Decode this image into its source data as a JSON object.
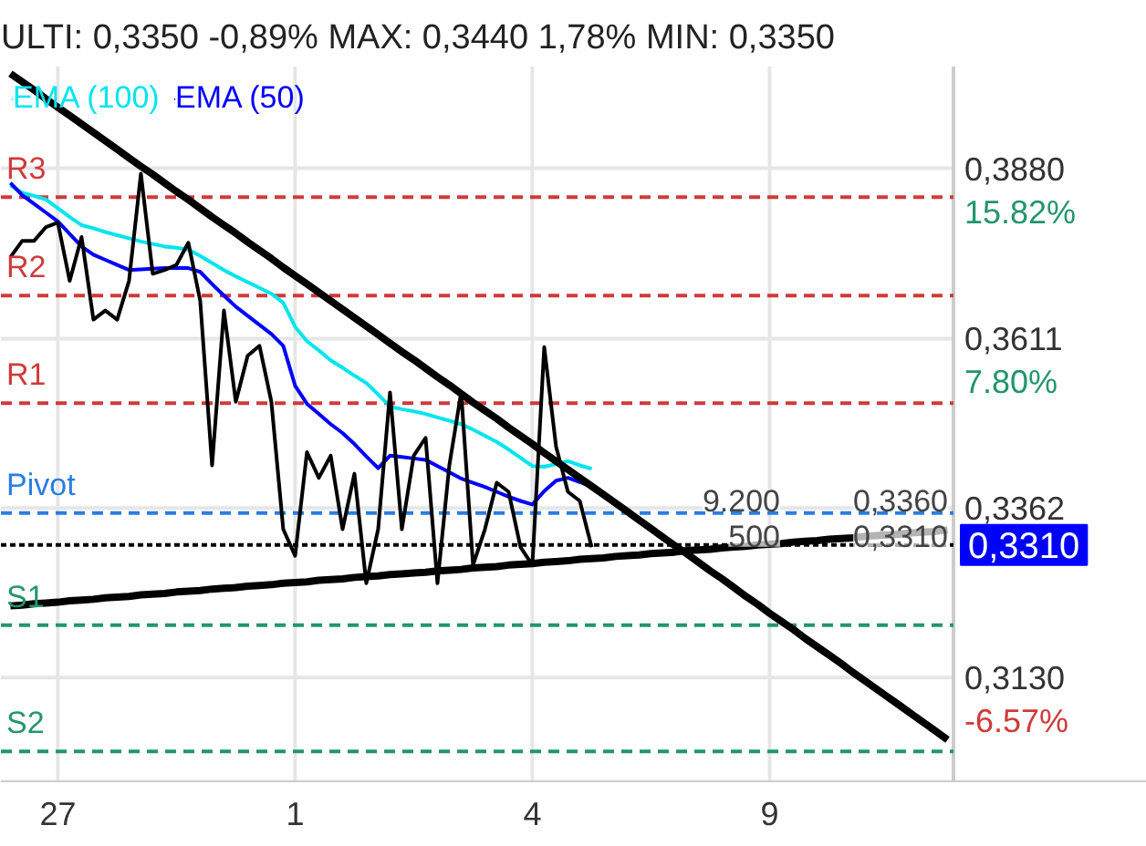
{
  "chart_data": {
    "type": "line",
    "title": "ULTI: 0,3350 -0,89%  MAX: 0,3440 1,78%  MIN: 0,3350",
    "log": "y",
    "grid": true,
    "legend": "top left",
    "categories": [
      null,
      null,
      null,
      null,
      "27",
      null,
      null,
      null,
      null,
      null,
      null,
      null,
      null,
      null,
      null,
      null,
      null,
      null,
      null,
      null,
      null,
      null,
      null,
      null,
      "1",
      null,
      null,
      null,
      null,
      null,
      null,
      null,
      null,
      null,
      null,
      null,
      null,
      null,
      null,
      null,
      null,
      null,
      null,
      null,
      "4",
      null,
      null,
      null,
      null,
      null,
      null,
      null,
      null,
      null,
      null,
      null,
      null,
      null,
      null,
      null,
      null,
      null,
      null,
      null,
      "9",
      null,
      null,
      null,
      null,
      null,
      null,
      null,
      null,
      null,
      null,
      null,
      null,
      null,
      null,
      null
    ],
    "ylim": [
      0.2996,
      0.405
    ],
    "yticks": [
      {
        "value": 0.388,
        "label": "0,3880"
      },
      {
        "value": 0.3611,
        "label": "0,3611"
      },
      {
        "value": 0.3362,
        "label": "0,3362"
      },
      {
        "value": 0.313,
        "label": "0,3130"
      }
    ],
    "series": [
      {
        "color": "#00e5ee",
        "name": "EMA (100)",
        "values": [
          0.3852,
          0.384,
          0.3835,
          0.3829,
          0.3815,
          0.3801,
          0.3788,
          0.3783,
          0.3777,
          0.3772,
          0.3767,
          0.3762,
          0.3758,
          0.3754,
          0.3752,
          0.3749,
          0.3739,
          0.3728,
          0.3717,
          0.3707,
          0.3698,
          0.3689,
          0.368,
          0.3666,
          0.3629,
          0.3607,
          0.3593,
          0.3578,
          0.3567,
          0.3555,
          0.3544,
          0.3527,
          0.3509,
          0.3505,
          0.3502,
          0.3498,
          0.3493,
          0.3488,
          0.3483,
          0.3475,
          0.3466,
          0.3457,
          0.3446,
          0.3434,
          0.3422,
          0.3421,
          0.3425,
          0.3429,
          0.3423,
          0.3418,
          null,
          null,
          null,
          null,
          null,
          null,
          null,
          null,
          null,
          null,
          null,
          null,
          null,
          null,
          null,
          null,
          null,
          null,
          null,
          null,
          null,
          null,
          null,
          null,
          null,
          null,
          null,
          null,
          null,
          null
        ]
      },
      {
        "color": "#0000ff",
        "name": "EMA (50)",
        "values": [
          0.3856,
          0.3836,
          0.3822,
          0.3808,
          0.3794,
          0.3774,
          0.3754,
          0.3741,
          0.3733,
          0.3725,
          0.3717,
          0.3718,
          0.3719,
          0.372,
          0.372,
          0.372,
          0.3714,
          0.3695,
          0.3677,
          0.366,
          0.3646,
          0.3632,
          0.3618,
          0.36,
          0.354,
          0.3513,
          0.3498,
          0.3483,
          0.347,
          0.3454,
          0.3436,
          0.3419,
          0.3437,
          0.3435,
          0.3433,
          0.3431,
          0.3422,
          0.3413,
          0.3404,
          0.3398,
          0.3392,
          0.3385,
          0.3378,
          0.3372,
          0.3367,
          0.3386,
          0.3401,
          0.3405,
          0.3399,
          0.3392,
          null,
          null,
          null,
          null,
          null,
          null,
          null,
          null,
          null,
          null,
          null,
          null,
          null,
          null,
          null,
          null,
          null,
          null,
          null,
          null,
          null,
          null,
          null,
          null,
          null,
          null,
          null,
          null,
          null,
          null
        ]
      },
      {
        "color": "#000000",
        "values": [
          0.3737,
          0.3763,
          0.3763,
          0.3785,
          0.3792,
          0.37,
          0.3769,
          0.364,
          0.3654,
          0.364,
          0.37,
          0.3871,
          0.3711,
          0.3717,
          0.3725,
          0.376,
          0.3669,
          0.3423,
          0.3654,
          0.3516,
          0.3585,
          0.36,
          0.3516,
          0.3332,
          0.3295,
          0.3442,
          0.3405,
          0.3437,
          0.3332,
          0.3411,
          0.3257,
          0.3332,
          0.353,
          0.3332,
          0.3437,
          0.3463,
          0.3257,
          0.3423,
          0.353,
          0.3282,
          0.3332,
          0.3398,
          0.3385,
          0.3307,
          0.3282,
          0.3598,
          0.345,
          0.3385,
          0.3372,
          0.3307,
          null,
          null,
          null,
          null,
          null,
          null,
          null,
          null,
          null,
          null,
          null,
          null,
          null,
          null,
          null,
          null,
          null,
          null,
          null,
          null,
          null,
          null,
          null,
          null,
          null,
          null,
          null,
          null,
          null,
          null
        ]
      },
      {
        "color": "#000000",
        "values": [
          0.4038,
          0.4024,
          0.401,
          0.3995,
          0.3981,
          0.3967,
          0.3953,
          0.3939,
          0.3925,
          0.3911,
          0.3897,
          0.3883,
          0.387,
          0.3856,
          0.3842,
          0.3829,
          0.3815,
          0.3801,
          0.3788,
          0.3775,
          0.3761,
          0.3748,
          0.3735,
          0.3721,
          0.3708,
          0.3695,
          0.3682,
          0.3669,
          0.3656,
          0.3643,
          0.363,
          0.3617,
          0.3604,
          0.3591,
          0.3579,
          0.3566,
          0.3553,
          0.3541,
          0.3528,
          0.3515,
          0.3503,
          0.3491,
          0.3478,
          0.3466,
          0.3454,
          0.3441,
          0.3429,
          0.3417,
          0.3405,
          0.3393,
          0.3381,
          0.3369,
          0.3357,
          0.3345,
          0.3333,
          0.3321,
          0.3309,
          0.3298,
          0.3286,
          0.3274,
          0.3263,
          0.3251,
          0.3239,
          0.3228,
          0.3216,
          0.3205,
          0.3194,
          0.3182,
          0.3171,
          0.316,
          0.3149,
          0.3137,
          0.3126,
          0.3115,
          0.3104,
          0.3093,
          0.3082,
          0.3071,
          0.306,
          0.3049
        ]
      },
      {
        "color": "#000000",
        "values": [
          0.3226,
          0.3227,
          0.3229,
          0.323,
          0.3231,
          0.3233,
          0.3234,
          0.3235,
          0.3237,
          0.3238,
          0.3239,
          0.3241,
          0.3242,
          0.3243,
          0.3245,
          0.3246,
          0.3247,
          0.3249,
          0.325,
          0.3251,
          0.3253,
          0.3254,
          0.3255,
          0.3257,
          0.3258,
          0.3259,
          0.3261,
          0.3262,
          0.3263,
          0.3265,
          0.3266,
          0.3267,
          0.3269,
          0.327,
          0.3271,
          0.3272,
          0.3274,
          0.3275,
          0.3276,
          0.3278,
          0.3279,
          0.328,
          0.3282,
          0.3283,
          0.3284,
          0.3286,
          0.3287,
          0.3288,
          0.329,
          0.3291,
          0.3292,
          0.3294,
          0.3295,
          0.3296,
          0.3298,
          0.3299,
          0.33,
          0.3302,
          0.3303,
          0.3304,
          0.3306,
          0.3307,
          0.3308,
          0.331,
          0.3311,
          0.3312,
          0.3314,
          0.3315,
          0.3316,
          0.3318,
          0.3319,
          0.332,
          0.3322,
          0.3323,
          0.3324,
          0.3325,
          0.3327,
          0.3328,
          0.3329,
          0.3331
        ]
      }
    ],
    "ref_lines": [
      {
        "axis": "y",
        "value": 0.3833,
        "label": "R3",
        "color": "#d03a3a",
        "line_style": "dashed"
      },
      {
        "axis": "y",
        "value": 0.3677,
        "label": "R2",
        "color": "#d03a3a",
        "line_style": "dashed"
      },
      {
        "axis": "y",
        "value": 0.3514,
        "label": "R1",
        "color": "#d03a3a",
        "line_style": "dashed"
      },
      {
        "axis": "y",
        "value": 0.3355,
        "label": "Pivot",
        "color": "#2a7de1",
        "line_style": "dashed"
      },
      {
        "axis": "y",
        "value": 0.331,
        "label": "0,3310",
        "color": "#000000",
        "line_style": "dotted"
      },
      {
        "axis": "y",
        "value": 0.32,
        "label": "S1",
        "color": "#22966a",
        "line_style": "dashed"
      },
      {
        "axis": "y",
        "value": 0.3034,
        "label": "S2",
        "color": "#22966a",
        "line_style": "dashed"
      }
    ],
    "annotations": [
      "15.82%",
      "7.80%",
      "-6.57%",
      {
        "text": "9.200",
        "y": 0.336
      },
      {
        "text": "0,3360",
        "y": 0.336
      },
      {
        "text": "500",
        "y": 0.331
      },
      {
        "text": "0,3310",
        "y": 0.331
      }
    ]
  }
}
